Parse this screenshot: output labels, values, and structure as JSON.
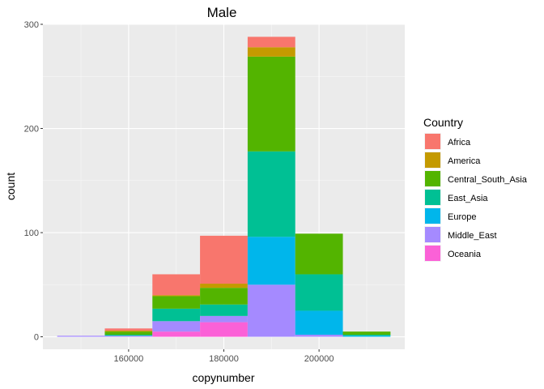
{
  "chart_data": {
    "type": "bar",
    "stacked": true,
    "title": "Male",
    "xlabel": "copynumber",
    "ylabel": "count",
    "xlim": [
      142000,
      218000
    ],
    "ylim": [
      -12,
      300
    ],
    "xticks": [
      {
        "value": 160000,
        "label": "160000"
      },
      {
        "value": 180000,
        "label": "180000"
      },
      {
        "value": 200000,
        "label": "200000"
      }
    ],
    "yticks": [
      {
        "value": 0,
        "label": "0"
      },
      {
        "value": 100,
        "label": "100"
      },
      {
        "value": 200,
        "label": "200"
      },
      {
        "value": 300,
        "label": "300"
      }
    ],
    "grid": true,
    "legend_title": "Country",
    "legend_position": "right",
    "bins": [
      {
        "x0": 145000,
        "x1": 155000
      },
      {
        "x0": 155000,
        "x1": 165000
      },
      {
        "x0": 165000,
        "x1": 175000
      },
      {
        "x0": 175000,
        "x1": 185000
      },
      {
        "x0": 185000,
        "x1": 195000
      },
      {
        "x0": 195000,
        "x1": 205000
      },
      {
        "x0": 205000,
        "x1": 215000
      }
    ],
    "series": [
      {
        "name": "Africa",
        "color": "#F8766D",
        "values": [
          0,
          2,
          20,
          46,
          10,
          0,
          0
        ]
      },
      {
        "name": "America",
        "color": "#C49A00",
        "values": [
          0,
          1,
          1,
          4,
          9,
          0,
          0
        ]
      },
      {
        "name": "Central_South_Asia",
        "color": "#53B400",
        "values": [
          0,
          3,
          12,
          16,
          91,
          39,
          3
        ]
      },
      {
        "name": "East_Asia",
        "color": "#00C094",
        "values": [
          0,
          1,
          12,
          11,
          82,
          35,
          1
        ]
      },
      {
        "name": "Europe",
        "color": "#00B6EB",
        "values": [
          0,
          0,
          0,
          0,
          46,
          23,
          1
        ]
      },
      {
        "name": "Middle_East",
        "color": "#A58AFF",
        "values": [
          1,
          1,
          10,
          6,
          50,
          2,
          0
        ]
      },
      {
        "name": "Oceania",
        "color": "#FB61D7",
        "values": [
          0,
          0,
          5,
          14,
          0,
          0,
          0
        ]
      }
    ]
  }
}
